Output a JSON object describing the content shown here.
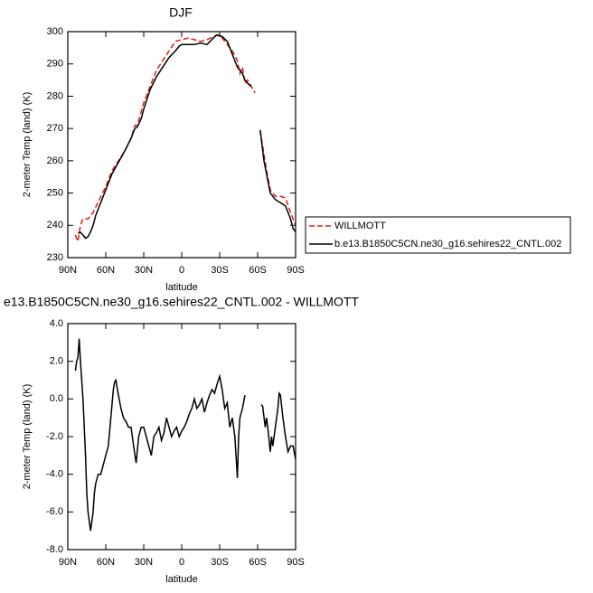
{
  "chart_data": [
    {
      "type": "line",
      "title": "DJF",
      "xlabel": "latitude",
      "ylabel": "2-meter Temp (land) (K)",
      "legend": "right",
      "xlim": [
        90,
        -90
      ],
      "xticks": [
        {
          "value": 90,
          "label": "90N"
        },
        {
          "value": 60,
          "label": "60N"
        },
        {
          "value": 30,
          "label": "30N"
        },
        0,
        {
          "value": -30,
          "label": "30S"
        },
        {
          "value": -60,
          "label": "60S"
        },
        {
          "value": -90,
          "label": "90S"
        }
      ],
      "ylim": [
        230,
        300
      ],
      "yticks": [
        230,
        240,
        250,
        260,
        270,
        280,
        290,
        300
      ],
      "series": [
        {
          "name": "WILLMOTT",
          "color": "#e41a1c",
          "dash": true,
          "x": [
            84,
            82,
            80,
            78,
            76,
            74,
            72,
            70,
            65,
            60,
            55,
            50,
            45,
            40,
            37,
            35,
            30,
            25,
            20,
            15,
            10,
            5,
            0,
            -5,
            -10,
            -15,
            -20,
            -25,
            -28,
            -32,
            -36,
            -40,
            -44,
            -46,
            -48,
            -50,
            -52,
            -55,
            -58,
            -60,
            -62,
            -65,
            -68,
            -70,
            -74,
            -78,
            -82,
            -86,
            -90
          ],
          "values": [
            237,
            235,
            240,
            242,
            242,
            242,
            243,
            244,
            248,
            252,
            257,
            260,
            263,
            267,
            271,
            271,
            278,
            283,
            288,
            291,
            294,
            297,
            297.5,
            298,
            297.5,
            297,
            297.5,
            298.5,
            299,
            298,
            296,
            294,
            291,
            287,
            289,
            284,
            285,
            283,
            281,
            null,
            269.5,
            262,
            255,
            251,
            249,
            249,
            248.5,
            244,
            240
          ]
        },
        {
          "name": "b.e13.B1850C5CN.ne30_g16.sehires22_CNTL.002",
          "color": "#000000",
          "dash": false,
          "x": [
            82,
            80,
            78,
            76,
            74,
            72,
            70,
            68,
            65,
            60,
            55,
            50,
            45,
            40,
            37,
            35,
            32,
            30,
            25,
            20,
            15,
            10,
            5,
            2,
            0,
            -5,
            -10,
            -15,
            -20,
            -25,
            -28,
            -32,
            -36,
            -40,
            -44,
            -48,
            -50,
            -52,
            -55,
            -58,
            -62,
            -65,
            -68,
            -70,
            -74,
            -78,
            -82,
            -86,
            -88,
            -90
          ],
          "values": [
            237.5,
            237.8,
            237,
            236,
            236.5,
            238,
            240,
            243,
            246,
            251,
            256,
            259.5,
            263,
            267,
            270,
            270.5,
            273,
            276,
            282,
            286,
            289,
            292,
            294,
            295.5,
            296,
            296,
            296,
            296.5,
            296,
            298,
            299,
            298.5,
            297,
            293,
            289,
            287,
            285,
            284,
            283,
            null,
            269.5,
            260,
            254,
            250,
            248,
            247,
            246,
            242,
            239,
            238
          ]
        }
      ]
    },
    {
      "type": "line",
      "title": "e13.B1850C5CN.ne30_g16.sehires22_CNTL.002 - WILLMOTT",
      "xlabel": "latitude",
      "ylabel": "2-meter Temp (land) (K)",
      "xlim": [
        90,
        -90
      ],
      "xticks": [
        {
          "value": 90,
          "label": "90N"
        },
        {
          "value": 60,
          "label": "60N"
        },
        {
          "value": 30,
          "label": "30N"
        },
        0,
        {
          "value": -30,
          "label": "30S"
        },
        {
          "value": -60,
          "label": "60S"
        },
        {
          "value": -90,
          "label": "90S"
        }
      ],
      "ylim": [
        -8,
        4
      ],
      "yticks": [
        {
          "value": -8,
          "label": "-8.0"
        },
        {
          "value": -6,
          "label": "-6.0"
        },
        {
          "value": -4,
          "label": "-4.0"
        },
        {
          "value": -2,
          "label": "-2.0"
        },
        {
          "value": 0,
          "label": "0.0"
        },
        {
          "value": 2,
          "label": "2.0"
        },
        {
          "value": 4,
          "label": "4.0"
        }
      ],
      "series": [
        {
          "color": "#000000",
          "dash": false,
          "x": [
            84,
            83,
            82,
            81,
            80,
            78,
            76,
            75,
            74,
            73,
            72,
            71,
            70,
            69,
            68,
            66,
            64,
            62,
            60,
            58,
            56,
            54,
            53,
            52,
            50,
            48,
            46,
            44,
            42,
            40,
            38,
            36,
            34,
            32,
            30,
            28,
            26,
            24,
            22,
            20,
            18,
            16,
            14,
            12,
            10,
            8,
            6,
            4,
            2,
            0,
            -2,
            -4,
            -6,
            -8,
            -10,
            -12,
            -14,
            -16,
            -18,
            -20,
            -22,
            -24,
            -26,
            -28,
            -30,
            -32,
            -34,
            -36,
            -38,
            -40,
            -42,
            -44,
            -45,
            -46,
            -48,
            -50,
            -56,
            -63,
            -64,
            -66,
            -67,
            -68,
            -70,
            -71,
            -72,
            -74,
            -76,
            -77,
            -78,
            -80,
            -82,
            -84,
            -86,
            -88,
            -90
          ],
          "values": [
            1.5,
            2.0,
            2.2,
            3.2,
            2.0,
            0,
            -3,
            -5,
            -6,
            -6.5,
            -7,
            -6.5,
            -6,
            -5,
            -4.5,
            -4,
            -4,
            -3.5,
            -3,
            -2.5,
            -1,
            0.5,
            0.9,
            1.0,
            0.2,
            -0.5,
            -1,
            -1.2,
            -1.5,
            -1.5,
            -2.5,
            -3.4,
            -2,
            -1.5,
            -1.5,
            -2,
            -2.5,
            -3,
            -2.0,
            -1.8,
            -1.5,
            -2.2,
            -1.8,
            -1.0,
            -1.5,
            -2.0,
            -1.7,
            -1.5,
            -2.0,
            -1.7,
            -1.5,
            -1.2,
            -0.8,
            -0.5,
            0.0,
            -0.5,
            -0.3,
            0.0,
            -0.7,
            -0.2,
            0.2,
            0.5,
            0.3,
            0.8,
            1.2,
            0.5,
            -0.5,
            -0.2,
            -1.5,
            -1.0,
            -2.0,
            -4.2,
            -2.0,
            -1.0,
            -0.5,
            0.2,
            null,
            -0.3,
            -0.4,
            -1.5,
            -1.0,
            -1.5,
            -2.8,
            -2.0,
            -2.5,
            -1.5,
            -0.5,
            0.3,
            0.2,
            -1.0,
            -2.0,
            -2.8,
            -2.5,
            -2.5,
            -3.2
          ]
        }
      ]
    }
  ]
}
